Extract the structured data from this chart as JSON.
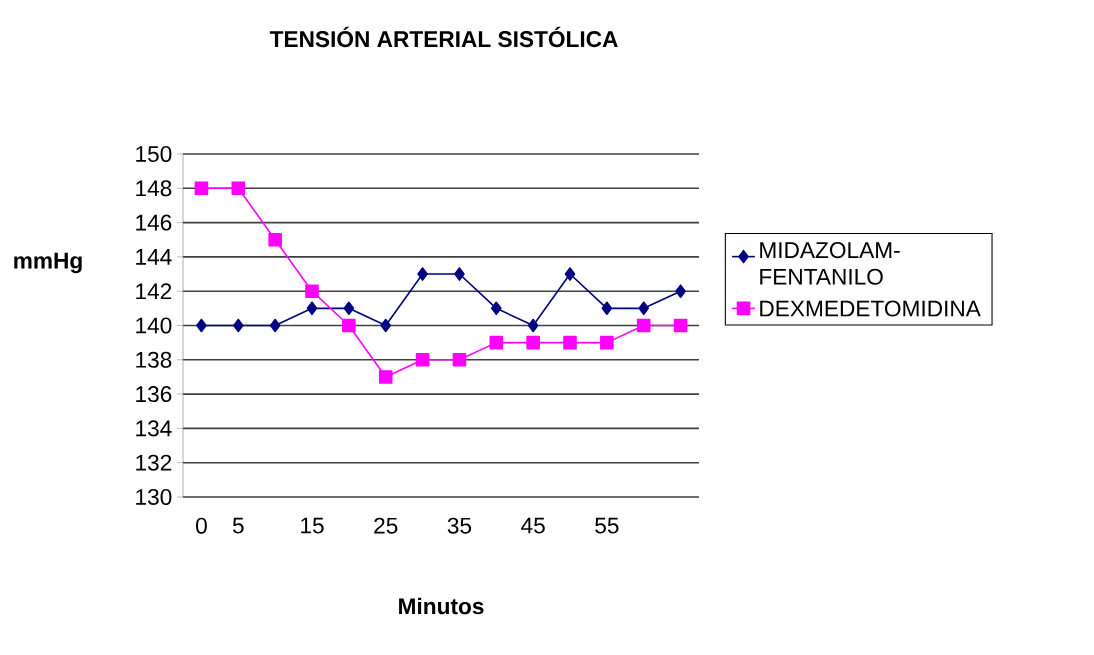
{
  "chart_data": {
    "type": "line",
    "title": "TENSIÓN  ARTERIAL SISTÓLICA",
    "xlabel": "Minutos",
    "ylabel": "mmHg",
    "categories": [
      "0",
      "5",
      null,
      "15",
      null,
      "25",
      null,
      "35",
      null,
      "45",
      null,
      "55",
      null,
      null
    ],
    "series": [
      {
        "name": "MIDAZOLAM-FENTANILO",
        "color": "#000080",
        "marker": "diamond",
        "values": [
          140,
          140,
          140,
          141,
          141,
          140,
          143,
          143,
          141,
          140,
          143,
          141,
          141,
          142
        ]
      },
      {
        "name": "DEXMEDETOMIDINA",
        "color": "#ff00ff",
        "marker": "square",
        "values": [
          148,
          148,
          145,
          142,
          140,
          137,
          138,
          138,
          139,
          139,
          139,
          139,
          140,
          140
        ]
      }
    ],
    "ylim": [
      130,
      150
    ],
    "yticks": [
      130,
      132,
      134,
      136,
      138,
      140,
      142,
      144,
      146,
      148,
      150
    ],
    "grid": "y",
    "legend": "right"
  }
}
